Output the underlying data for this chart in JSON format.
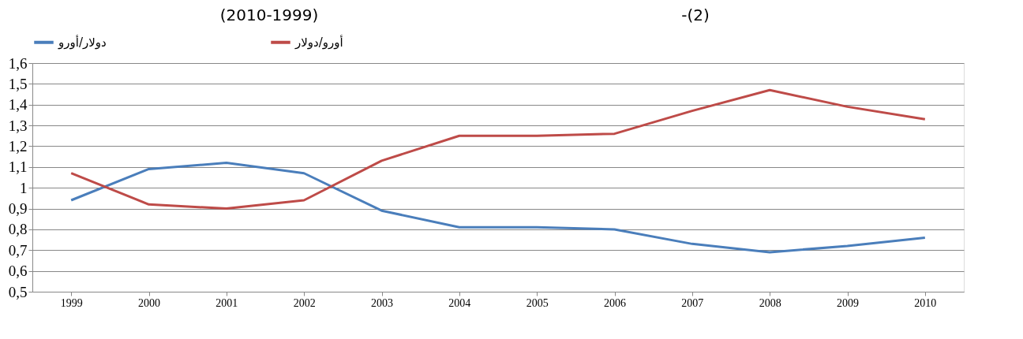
{
  "chart_data": {
    "type": "line",
    "title": "(2010-1999)",
    "annotations": [
      "-(2)"
    ],
    "categories": [
      "1999",
      "2000",
      "2001",
      "2002",
      "2003",
      "2004",
      "2005",
      "2006",
      "2007",
      "2008",
      "2009",
      "2010"
    ],
    "series": [
      {
        "name": "دولار/أورو",
        "color": "#4a7ebb",
        "values": [
          0.94,
          1.09,
          1.12,
          1.07,
          0.89,
          0.81,
          0.81,
          0.8,
          0.73,
          0.69,
          0.72,
          0.76
        ]
      },
      {
        "name": "أورو/دولار",
        "color": "#be4b48",
        "values": [
          1.07,
          0.92,
          0.9,
          0.94,
          1.13,
          1.25,
          1.25,
          1.26,
          1.37,
          1.47,
          1.39,
          1.33
        ]
      }
    ],
    "ylim": [
      0.5,
      1.6
    ],
    "yticks": [
      {
        "value": 0.5,
        "label": "0,5"
      },
      {
        "value": 0.6,
        "label": "0,6"
      },
      {
        "value": 0.7,
        "label": "0,7"
      },
      {
        "value": 0.8,
        "label": "0,8"
      },
      {
        "value": 0.9,
        "label": "0,9"
      },
      {
        "value": 1,
        "label": "1"
      },
      {
        "value": 1.1,
        "label": "1,1"
      },
      {
        "value": 1.2,
        "label": "1,2"
      },
      {
        "value": 1.3,
        "label": "1,3"
      },
      {
        "value": 1.4,
        "label": "1,4"
      },
      {
        "value": 1.5,
        "label": "1,5"
      },
      {
        "value": 1.6,
        "label": "1,6"
      }
    ],
    "grid": "y",
    "legend": "top",
    "marker": "none",
    "line_style": "solid"
  }
}
